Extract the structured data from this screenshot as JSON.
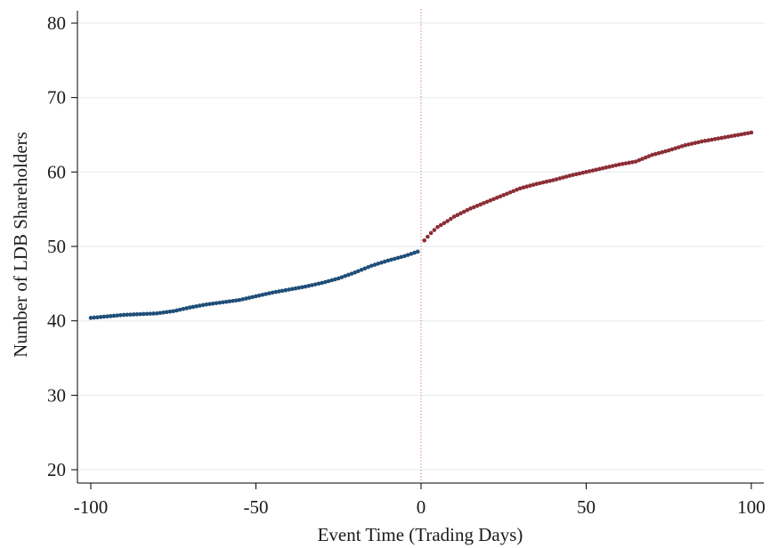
{
  "chart_data": {
    "type": "scatter",
    "title": "",
    "xlabel": "Event Time (Trading Days)",
    "ylabel": "Number of LDB Shareholders",
    "xlim": [
      -100,
      100
    ],
    "ylim": [
      20,
      80
    ],
    "x_ticks": [
      -100,
      -50,
      0,
      50,
      100
    ],
    "x_tick_labels": [
      "-100",
      "-50",
      "0",
      "50",
      "100"
    ],
    "y_ticks": [
      20,
      30,
      40,
      50,
      60,
      70,
      80
    ],
    "y_tick_labels": [
      "20",
      "30",
      "40",
      "50",
      "60",
      "70",
      "80"
    ],
    "grid": "horizontal",
    "event_line": {
      "x": 0,
      "color": "#d98880",
      "style": "dotted"
    },
    "series": [
      {
        "color": "#1f4e79",
        "x": [
          -100,
          -95,
          -90,
          -85,
          -80,
          -75,
          -70,
          -65,
          -60,
          -55,
          -50,
          -45,
          -40,
          -35,
          -30,
          -25,
          -20,
          -15,
          -10,
          -5,
          -1
        ],
        "y": [
          40.4,
          40.6,
          40.8,
          40.9,
          41.0,
          41.3,
          41.8,
          42.2,
          42.5,
          42.8,
          43.3,
          43.8,
          44.2,
          44.6,
          45.1,
          45.7,
          46.5,
          47.4,
          48.1,
          48.7,
          49.3
        ]
      },
      {
        "color": "#8b2e35",
        "x": [
          1,
          3,
          5,
          8,
          10,
          15,
          20,
          25,
          30,
          35,
          40,
          45,
          50,
          55,
          60,
          65,
          70,
          75,
          80,
          85,
          90,
          95,
          100
        ],
        "y": [
          50.8,
          51.8,
          52.6,
          53.4,
          54.0,
          55.1,
          56.0,
          56.9,
          57.8,
          58.4,
          58.9,
          59.5,
          60.0,
          60.5,
          61.0,
          61.4,
          62.3,
          62.9,
          63.6,
          64.1,
          64.5,
          64.9,
          65.3
        ]
      }
    ]
  }
}
